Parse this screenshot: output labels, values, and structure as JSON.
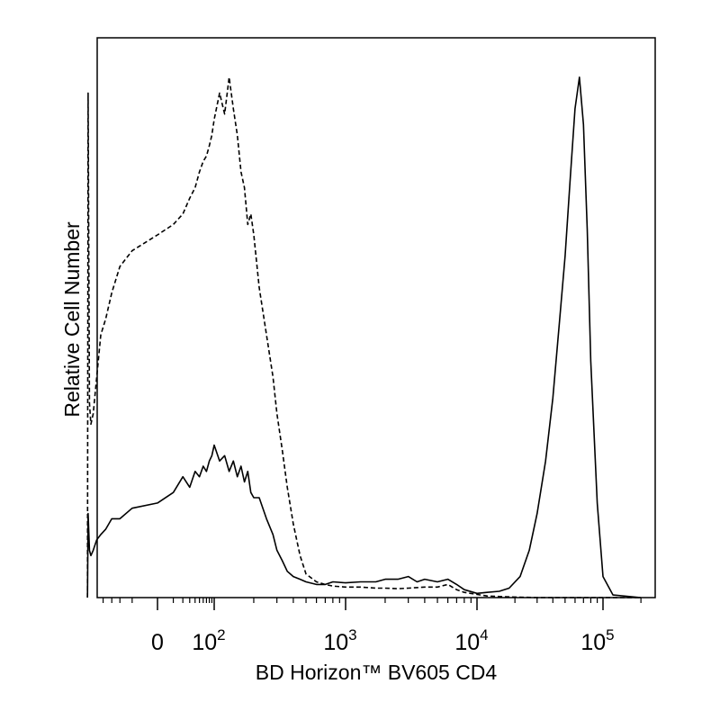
{
  "chart_data": {
    "type": "line",
    "xlabel": "BD Horizon™ BV605 CD4",
    "ylabel": "Relative Cell Number",
    "x_scale": "biexponential",
    "x_ticks": [
      {
        "value": 0,
        "label": "0"
      },
      {
        "value": 100,
        "base": "10",
        "exp": "2"
      },
      {
        "value": 1000,
        "base": "10",
        "exp": "3"
      },
      {
        "value": 10000,
        "base": "10",
        "exp": "4"
      },
      {
        "value": 100000,
        "base": "10",
        "exp": "5"
      }
    ],
    "y_ticks": false,
    "grid": false,
    "legend": "none",
    "series": [
      {
        "line_style": "dashed",
        "x": [
          -180,
          -175,
          -165,
          -155,
          -140,
          -120,
          -100,
          -80,
          -60,
          -40,
          -20,
          0,
          10,
          20,
          30,
          40,
          50,
          60,
          70,
          80,
          90,
          100,
          110,
          120,
          130,
          140,
          150,
          160,
          170,
          180,
          190,
          200,
          220,
          250,
          280,
          300,
          330,
          360,
          400,
          450,
          500,
          600,
          700,
          800,
          1000,
          1300,
          1700,
          2000,
          2500,
          3000,
          4000,
          5000,
          6000,
          7000,
          8000,
          10000,
          12000,
          15000,
          20000,
          30000,
          50000,
          100000,
          200000
        ],
        "y": [
          0.0,
          0.96,
          0.37,
          0.33,
          0.35,
          0.42,
          0.5,
          0.53,
          0.58,
          0.63,
          0.66,
          0.69,
          0.71,
          0.73,
          0.76,
          0.78,
          0.81,
          0.83,
          0.84,
          0.86,
          0.88,
          0.91,
          0.96,
          0.92,
          0.99,
          0.93,
          0.88,
          0.81,
          0.78,
          0.71,
          0.73,
          0.69,
          0.59,
          0.5,
          0.42,
          0.35,
          0.28,
          0.21,
          0.14,
          0.08,
          0.045,
          0.03,
          0.025,
          0.022,
          0.02,
          0.02,
          0.018,
          0.018,
          0.017,
          0.018,
          0.02,
          0.02,
          0.025,
          0.015,
          0.01,
          0.006,
          0.003,
          0.002,
          0.001,
          0.0,
          0.0,
          0.0,
          0.0
        ]
      },
      {
        "line_style": "solid",
        "x": [
          -180,
          -175,
          -165,
          -155,
          -140,
          -120,
          -100,
          -80,
          -60,
          -40,
          -20,
          0,
          10,
          20,
          30,
          40,
          50,
          60,
          70,
          80,
          90,
          100,
          110,
          120,
          130,
          140,
          150,
          160,
          170,
          180,
          190,
          200,
          220,
          250,
          280,
          300,
          330,
          360,
          400,
          450,
          500,
          600,
          700,
          800,
          1000,
          1300,
          1700,
          2000,
          2500,
          3000,
          3500,
          4000,
          5000,
          6000,
          7000,
          8000,
          10000,
          12000,
          15000,
          18000,
          22000,
          26000,
          30000,
          35000,
          40000,
          45000,
          50000,
          55000,
          60000,
          65000,
          70000,
          75000,
          80000,
          90000,
          100000,
          120000,
          200000
        ],
        "y": [
          0.0,
          0.16,
          0.09,
          0.08,
          0.09,
          0.11,
          0.12,
          0.13,
          0.15,
          0.15,
          0.17,
          0.18,
          0.2,
          0.23,
          0.21,
          0.24,
          0.23,
          0.25,
          0.24,
          0.26,
          0.27,
          0.29,
          0.26,
          0.27,
          0.24,
          0.26,
          0.23,
          0.25,
          0.22,
          0.24,
          0.2,
          0.19,
          0.19,
          0.15,
          0.12,
          0.09,
          0.07,
          0.05,
          0.04,
          0.035,
          0.03,
          0.025,
          0.025,
          0.03,
          0.028,
          0.03,
          0.03,
          0.035,
          0.035,
          0.04,
          0.03,
          0.035,
          0.03,
          0.035,
          0.025,
          0.015,
          0.008,
          0.01,
          0.012,
          0.018,
          0.04,
          0.09,
          0.16,
          0.26,
          0.38,
          0.52,
          0.65,
          0.8,
          0.93,
          0.99,
          0.9,
          0.7,
          0.45,
          0.18,
          0.04,
          0.005,
          0.0
        ]
      }
    ]
  }
}
